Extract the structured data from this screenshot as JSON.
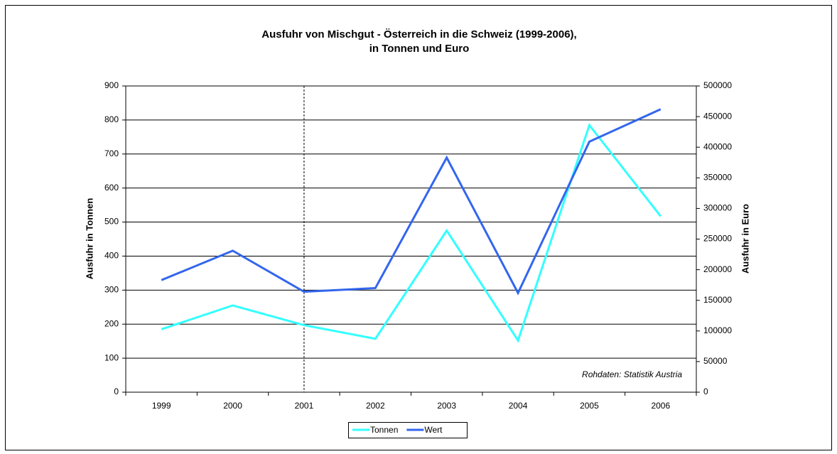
{
  "chart_data": {
    "type": "line",
    "title": [
      "Ausfuhr von Mischgut - Österreich in die Schweiz (1999-2006),",
      "in Tonnen und Euro"
    ],
    "y_label": "Ausfuhr in Tonnen",
    "y2_label": "Ausfuhr in Euro",
    "annotation": "Rohdaten: Statistik Austria",
    "categories": [
      "1999",
      "2000",
      "2001",
      "2002",
      "2003",
      "2004",
      "2005",
      "2006"
    ],
    "series": [
      {
        "name": "Tonnen",
        "color": "#33ffff",
        "values": [
          185,
          255,
          197,
          157,
          475,
          152,
          785,
          517
        ]
      },
      {
        "name": "Wert",
        "color": "#3366ee",
        "axis": "y2",
        "values": [
          183000,
          231000,
          164000,
          170000,
          383000,
          162000,
          409000,
          462000
        ]
      }
    ],
    "ylim": [
      0,
      900
    ],
    "yticks": [
      0,
      100,
      200,
      300,
      400,
      500,
      600,
      700,
      800,
      900
    ],
    "y2lim": [
      0,
      500000
    ],
    "y2ticks": [
      0,
      50000,
      100000,
      150000,
      200000,
      250000,
      300000,
      350000,
      400000,
      450000,
      500000
    ],
    "grid": true,
    "vline_category": "2001",
    "legend": "bottom"
  }
}
